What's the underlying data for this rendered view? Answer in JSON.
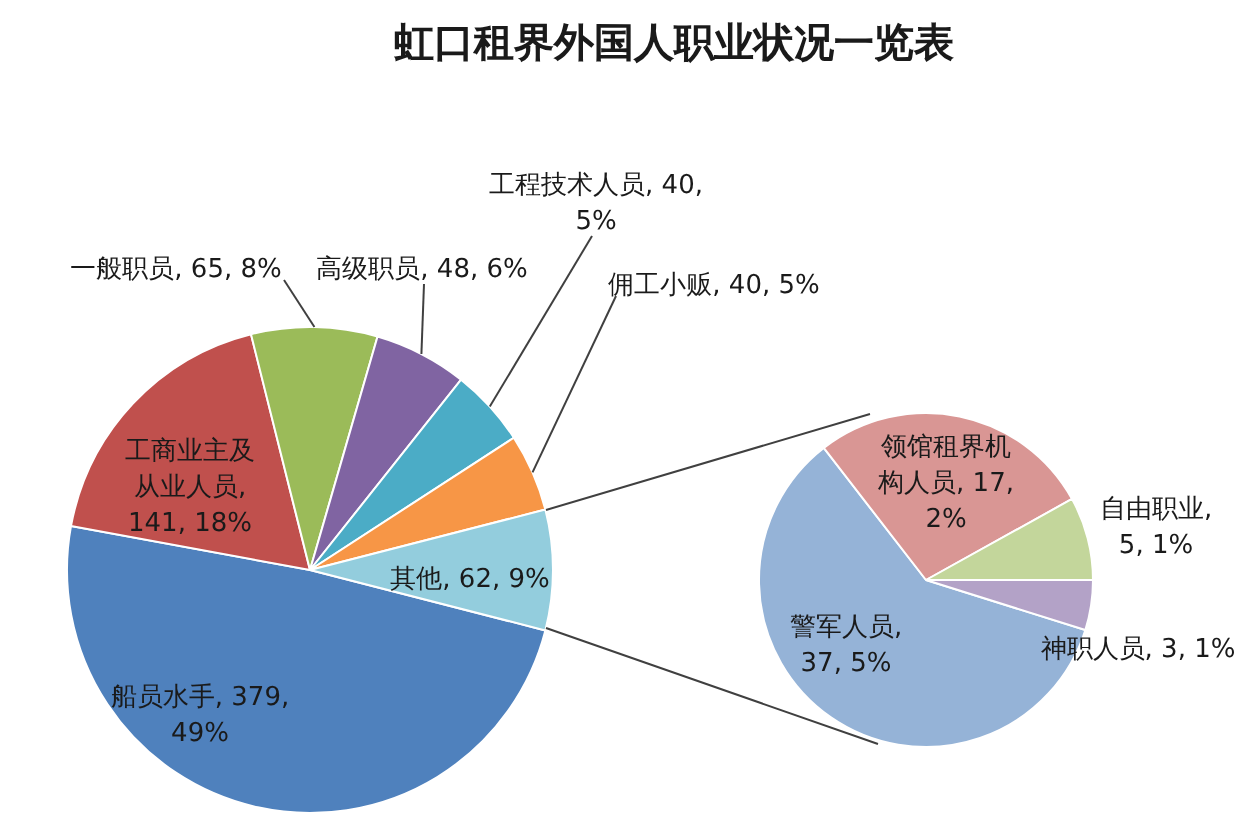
{
  "chart_data": [
    {
      "type": "pie",
      "title": "虹口租界外国人职业状况一览表",
      "categories": [
        "船员水手",
        "工商业主及从业人员",
        "一般职员",
        "高级职员",
        "工程技术人员",
        "佣工小贩",
        "其他"
      ],
      "values": [
        379,
        141,
        65,
        48,
        40,
        40,
        62
      ],
      "colors": [
        "#4f81bd",
        "#c0504d",
        "#9bbb59",
        "#8064a2",
        "#4bacc6",
        "#f79646",
        "#93cddd"
      ],
      "value_labels": [
        ", 379, 49%",
        ", 141, 18%",
        ", 65, 8%",
        ", 48, 6%",
        ", 40, 5%",
        ", 40, 5%",
        ", 62, 9%"
      ]
    },
    {
      "type": "pie",
      "categories": [
        "警军人员",
        "领馆租界机构人员",
        "自由职业",
        "神职人员"
      ],
      "values": [
        37,
        17,
        5,
        3
      ],
      "colors": [
        "#95b3d7",
        "#d99694",
        "#c3d69b",
        "#b3a2c7"
      ],
      "value_labels": [
        ", 37, 5%",
        ", 17, 2%",
        ", 5, 1%",
        ", 3, 1%"
      ]
    }
  ]
}
